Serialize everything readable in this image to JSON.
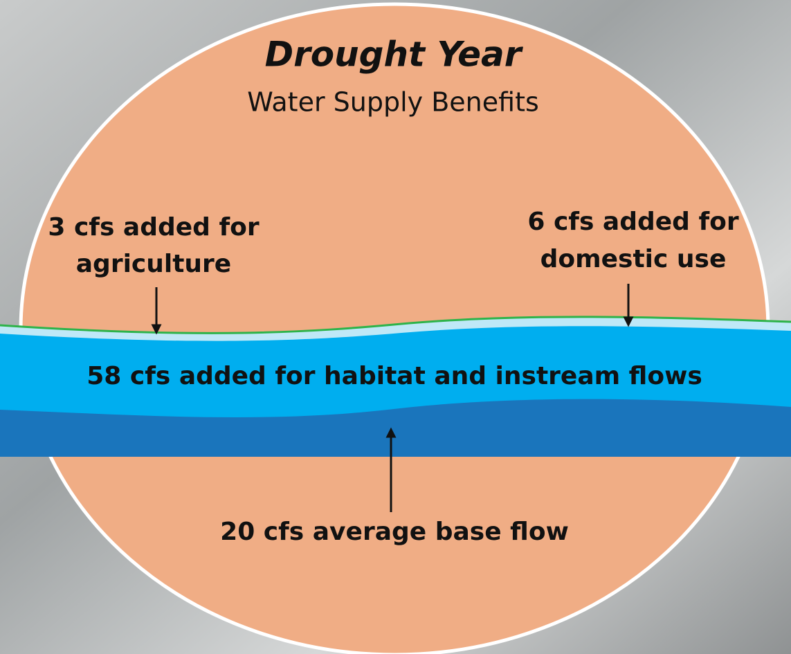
{
  "header": {
    "title": "Drought Year",
    "subtitle": "Water Supply Benefits"
  },
  "annotations": {
    "agriculture": [
      "3 cfs added for",
      "agriculture"
    ],
    "domestic": [
      "6 cfs added for",
      "domestic use"
    ],
    "habitat": "58 cfs added for habitat and instream flows",
    "base_flow": "20 cfs average base flow"
  }
}
